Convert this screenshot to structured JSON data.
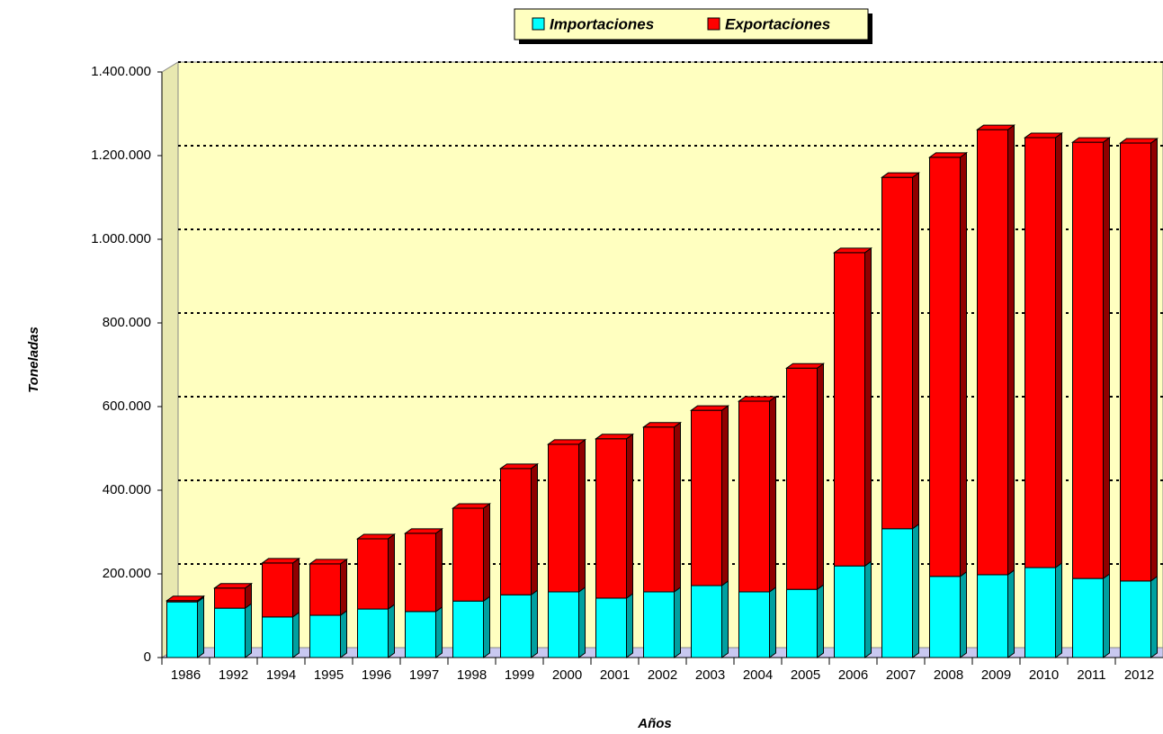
{
  "chart_data": {
    "type": "bar",
    "stacked": true,
    "x_label": "Años",
    "y_label": "Toneladas",
    "categories": [
      "1986",
      "1992",
      "1994",
      "1995",
      "1996",
      "1997",
      "1998",
      "1999",
      "2000",
      "2001",
      "2002",
      "2003",
      "2004",
      "2005",
      "2006",
      "2007",
      "2008",
      "2009",
      "2010",
      "2011",
      "2012"
    ],
    "series": [
      {
        "name": "Importaciones",
        "color": "#00ffff",
        "side": "#00a0a0",
        "values": [
          133000,
          118000,
          97000,
          101000,
          116000,
          110000,
          135000,
          150000,
          157000,
          142000,
          157000,
          172000,
          157000,
          163000,
          219000,
          308000,
          194000,
          198000,
          215000,
          189000,
          183000
        ]
      },
      {
        "name": "Exportaciones",
        "color": "#ff0000",
        "side": "#900000",
        "values": [
          3000,
          48000,
          129000,
          123000,
          168000,
          187000,
          222000,
          302000,
          353000,
          381000,
          394000,
          419000,
          456000,
          529000,
          749000,
          840000,
          1002000,
          1064000,
          1028000,
          1043000,
          1047000
        ]
      }
    ],
    "ylim": [
      0,
      1400000
    ],
    "yticks": [
      0,
      {
        "value": 200000,
        "label": "200.000"
      },
      {
        "value": 400000,
        "label": "400.000"
      },
      {
        "value": 600000,
        "label": "600.000"
      },
      {
        "value": 800000,
        "label": "800.000"
      },
      {
        "value": 1000000,
        "label": "1.000.000"
      },
      {
        "value": 1200000,
        "label": "1.200.000"
      },
      {
        "value": 1400000,
        "label": "1.400.000"
      }
    ],
    "grid": true,
    "legend": "top"
  }
}
